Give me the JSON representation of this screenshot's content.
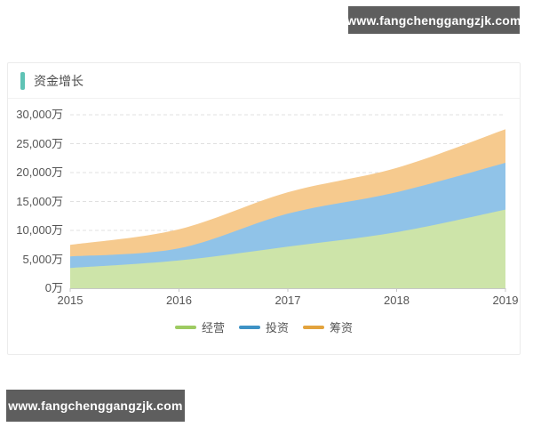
{
  "watermarks": {
    "top": "www.fangchenggangzjk.com",
    "bottom": "www.fangchenggangzjk.com"
  },
  "panel": {
    "title": "资金增长"
  },
  "chart_data": {
    "type": "area",
    "stacked": true,
    "smooth": true,
    "title": "资金增长",
    "x": [
      "2015",
      "2016",
      "2017",
      "2018",
      "2019"
    ],
    "series": [
      {
        "name": "经营",
        "values": [
          3500,
          4800,
          7200,
          9700,
          13600
        ],
        "area_color": "#cde4a9",
        "legend_color": "#9ecb62"
      },
      {
        "name": "投资",
        "values": [
          2000,
          2100,
          5700,
          6900,
          8100
        ],
        "area_color": "#90c3e8",
        "legend_color": "#3e92c5"
      },
      {
        "name": "筹资",
        "values": [
          2000,
          3300,
          3700,
          4200,
          5800
        ],
        "area_color": "#f6ca8e",
        "legend_color": "#e3a33d"
      }
    ],
    "cumulative_totals": [
      7500,
      10200,
      16600,
      20800,
      27500
    ],
    "y_ticks": [
      {
        "label": "30,000万",
        "value": 30000
      },
      {
        "label": "25,000万",
        "value": 25000
      },
      {
        "label": "20,000万",
        "value": 20000
      },
      {
        "label": "15,000万",
        "value": 15000
      },
      {
        "label": "10,000万",
        "value": 10000
      },
      {
        "label": "5,000万",
        "value": 5000
      },
      {
        "label": "0万",
        "value": 0
      }
    ],
    "ylim": [
      0,
      30000
    ],
    "grid": "dashed-horizontal",
    "legend_position": "bottom"
  },
  "colors": {
    "accent_bar": "#5fc3b5",
    "watermark_bg": "#5e5e5e",
    "axis_line": "#c7c7c7",
    "grid_line": "#e0e0e0",
    "text": "#555555"
  }
}
